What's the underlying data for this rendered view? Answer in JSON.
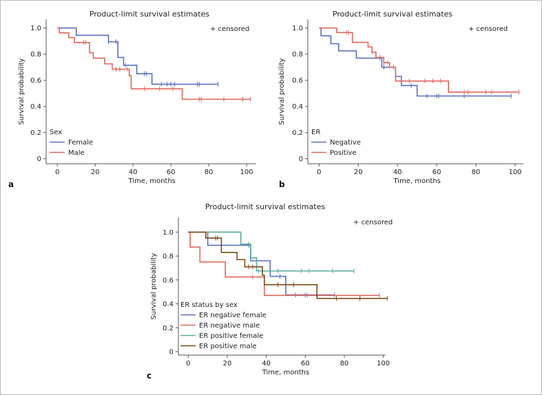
{
  "chart_data": [
    {
      "type": "line",
      "panel_label": "a",
      "title": "Product-limit survival estimates",
      "censored_note": "+ censored",
      "xlabel": "Time, months",
      "ylabel": "Survival probability",
      "xlim": [
        -3,
        105
      ],
      "ylim": [
        0,
        1.05
      ],
      "xticks": [
        0,
        20,
        40,
        60,
        80,
        100
      ],
      "yticks": [
        0,
        0.2,
        0.4,
        0.6,
        0.8,
        1.0
      ],
      "ytick_labels": [
        "0",
        "0.2",
        "0.4",
        "0.6",
        "0.8",
        "1.0"
      ],
      "legend_title": "Sex",
      "legend_position": "bottom-left",
      "series": [
        {
          "name": "Female",
          "color": "#5a6ec4",
          "steps": [
            [
              0,
              1
            ],
            [
              10,
              0.944
            ],
            [
              27,
              0.895
            ],
            [
              32,
              0.775
            ],
            [
              35,
              0.715
            ],
            [
              42,
              0.65
            ],
            [
              50,
              0.57
            ]
          ],
          "end": 85,
          "censored": [
            27,
            31,
            36,
            46,
            47,
            55,
            58,
            60,
            62,
            74,
            75,
            85
          ]
        },
        {
          "name": "Male",
          "color": "#e0675b",
          "steps": [
            [
              0,
              1
            ],
            [
              1,
              0.963
            ],
            [
              6,
              0.926
            ],
            [
              9,
              0.889
            ],
            [
              17,
              0.81
            ],
            [
              19,
              0.77
            ],
            [
              25,
              0.726
            ],
            [
              29,
              0.685
            ],
            [
              38,
              0.635
            ],
            [
              39,
              0.535
            ],
            [
              66,
              0.455
            ]
          ],
          "end": 102,
          "censored": [
            14,
            15,
            31,
            33,
            37,
            46,
            54,
            61,
            75,
            76,
            88,
            98,
            102
          ]
        }
      ]
    },
    {
      "type": "line",
      "panel_label": "b",
      "title": "Product-limit survival estimates",
      "censored_note": "+ censored",
      "xlabel": "Time, months",
      "ylabel": "Survival probability",
      "xlim": [
        -3,
        105
      ],
      "ylim": [
        0,
        1.05
      ],
      "xticks": [
        0,
        20,
        40,
        60,
        80,
        100
      ],
      "yticks": [
        0,
        0.2,
        0.4,
        0.6,
        0.8,
        1.0
      ],
      "ytick_labels": [
        "0",
        "0.2",
        "0.4",
        "0.6",
        "0.8",
        "1.0"
      ],
      "legend_title": "ER",
      "legend_position": "bottom-left",
      "series": [
        {
          "name": "Negative",
          "color": "#5a6ec4",
          "steps": [
            [
              0,
              1
            ],
            [
              1,
              0.94
            ],
            [
              6,
              0.88
            ],
            [
              10,
              0.825
            ],
            [
              19,
              0.77
            ],
            [
              32,
              0.7
            ],
            [
              39,
              0.63
            ],
            [
              42,
              0.56
            ],
            [
              50,
              0.48
            ]
          ],
          "end": 98,
          "censored": [
            31,
            33,
            47,
            55,
            60,
            61,
            74,
            98
          ]
        },
        {
          "name": "Positive",
          "color": "#e0675b",
          "steps": [
            [
              0,
              1
            ],
            [
              9,
              0.965
            ],
            [
              17,
              0.89
            ],
            [
              25,
              0.855
            ],
            [
              27,
              0.815
            ],
            [
              29,
              0.775
            ],
            [
              33,
              0.735
            ],
            [
              36,
              0.7
            ],
            [
              39,
              0.595
            ],
            [
              66,
              0.51
            ]
          ],
          "end": 102,
          "censored": [
            14,
            15,
            27,
            31,
            33,
            35,
            38,
            46,
            54,
            58,
            62,
            74,
            76,
            85,
            88,
            102
          ]
        }
      ]
    },
    {
      "type": "line",
      "panel_label": "c",
      "title": "Product-limit survival estimates",
      "censored_note": "+ censored",
      "xlabel": "Time, months",
      "ylabel": "Survival probability",
      "xlim": [
        -5,
        104
      ],
      "ylim": [
        0,
        1.1
      ],
      "xticks": [
        0,
        20,
        40,
        60,
        80,
        100
      ],
      "yticks": [
        0,
        0.2,
        0.4,
        0.6,
        0.8,
        1.0
      ],
      "ytick_labels": [
        "0",
        "0.2",
        "0.4",
        "0.6",
        "0.8",
        "1.0"
      ],
      "legend_title": "ER status by sex",
      "legend_position": "bottom-left",
      "series": [
        {
          "name": "ER negative female",
          "color": "#5a6ec4",
          "steps": [
            [
              0,
              1
            ],
            [
              10,
              0.89
            ],
            [
              32,
              0.76
            ],
            [
              42,
              0.63
            ],
            [
              50,
              0.475
            ]
          ],
          "end": 75,
          "censored": [
            31,
            47,
            55,
            60,
            75
          ]
        },
        {
          "name": "ER negative male",
          "color": "#e0675b",
          "steps": [
            [
              0,
              1
            ],
            [
              1,
              0.875
            ],
            [
              6,
              0.75
            ],
            [
              19,
              0.625
            ],
            [
              39,
              0.47
            ]
          ],
          "end": 98,
          "censored": [
            33,
            61,
            98
          ]
        },
        {
          "name": "ER positive female",
          "color": "#5aab9e",
          "steps": [
            [
              0,
              1
            ],
            [
              27,
              0.9
            ],
            [
              32,
              0.785
            ],
            [
              35,
              0.675
            ]
          ],
          "end": 85,
          "censored": [
            31,
            36,
            46,
            58,
            62,
            74,
            85
          ]
        },
        {
          "name": "ER positive male",
          "color": "#7a4a12",
          "steps": [
            [
              0,
              1
            ],
            [
              9,
              0.95
            ],
            [
              17,
              0.83
            ],
            [
              25,
              0.77
            ],
            [
              29,
              0.71
            ],
            [
              38,
              0.64
            ],
            [
              39,
              0.56
            ],
            [
              66,
              0.445
            ]
          ],
          "end": 102,
          "censored": [
            14,
            15,
            31,
            33,
            46,
            54,
            76,
            88,
            102
          ]
        }
      ]
    }
  ]
}
